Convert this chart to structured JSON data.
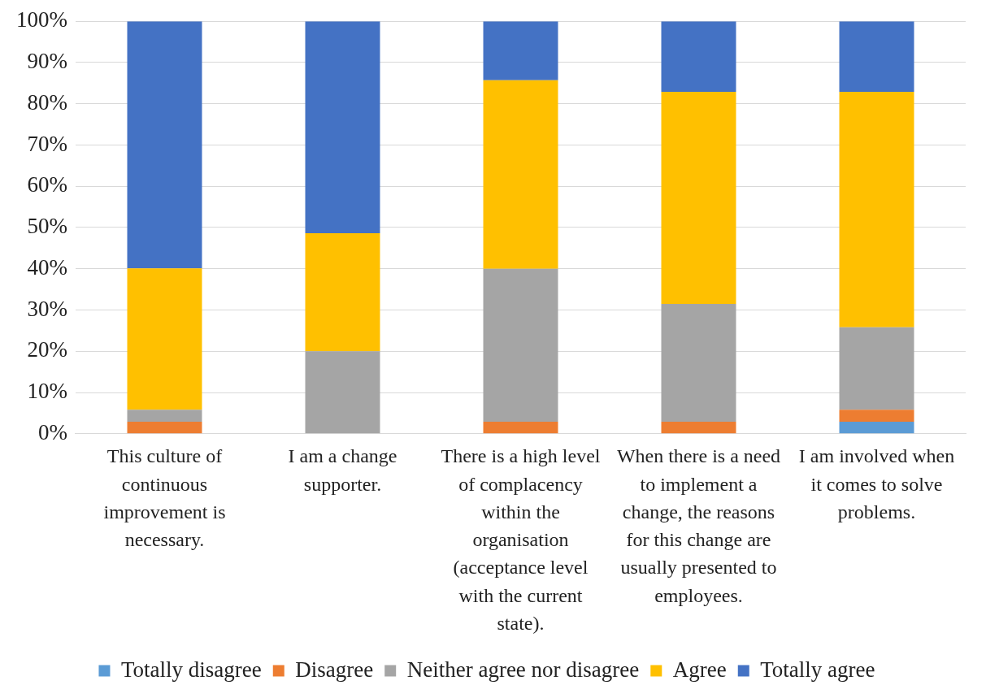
{
  "chart_data": {
    "type": "bar",
    "stacked": true,
    "categories": [
      "This culture of continuous improvement is necessary.",
      "I am a change supporter.",
      "There is a high level of complacency within the organisation (acceptance level with the current state).",
      "When there is a need to implement a change, the reasons for this change are usually presented to employees.",
      "I am involved when it comes to solve problems."
    ],
    "series": [
      {
        "name": "Totally disagree",
        "color": "#5b9bd5",
        "values": [
          0,
          0,
          0,
          0,
          2.9
        ]
      },
      {
        "name": "Disagree",
        "color": "#ed7d31",
        "values": [
          2.9,
          0,
          2.9,
          2.9,
          2.9
        ]
      },
      {
        "name": "Neither agree nor disagree",
        "color": "#a5a5a5",
        "values": [
          2.9,
          20,
          37.1,
          28.6,
          20
        ]
      },
      {
        "name": "Agree",
        "color": "#ffc000",
        "values": [
          34.3,
          28.6,
          45.7,
          51.4,
          57.1
        ]
      },
      {
        "name": "Totally agree",
        "color": "#4472c4",
        "values": [
          59.9,
          51.4,
          14.3,
          17.1,
          17.1
        ]
      }
    ],
    "ylim": [
      0,
      100
    ],
    "yticks": [
      {
        "value": 0,
        "label": "0%"
      },
      {
        "value": 10,
        "label": "10%"
      },
      {
        "value": 20,
        "label": "20%"
      },
      {
        "value": 30,
        "label": "30%"
      },
      {
        "value": 40,
        "label": "40%"
      },
      {
        "value": 50,
        "label": "50%"
      },
      {
        "value": 60,
        "label": "60%"
      },
      {
        "value": 70,
        "label": "70%"
      },
      {
        "value": 80,
        "label": "80%"
      },
      {
        "value": 90,
        "label": "90%"
      },
      {
        "value": 100,
        "label": "100%"
      }
    ],
    "grid": "y",
    "legend": "bottom"
  }
}
